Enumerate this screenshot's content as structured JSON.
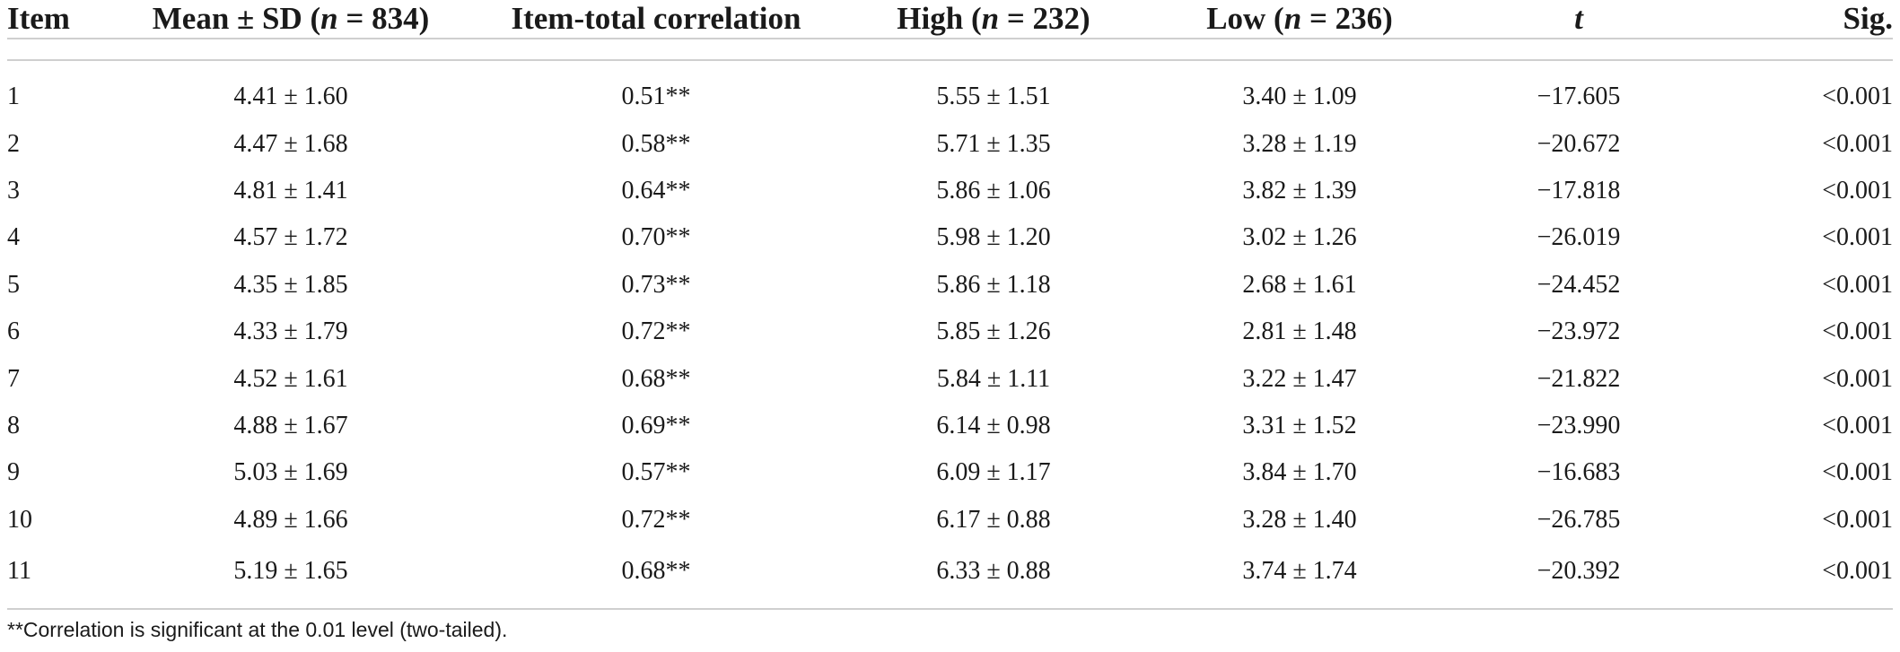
{
  "table": {
    "headers": {
      "item": "Item",
      "mean_prefix": "Mean ± SD (",
      "mean_n": "n",
      "mean_suffix": " = 834)",
      "corr": "Item-total correlation",
      "high_prefix": "High (",
      "high_n": "n",
      "high_suffix": " = 232)",
      "low_prefix": "Low (",
      "low_n": "n",
      "low_suffix": " = 236)",
      "t": "t",
      "sig": "Sig."
    },
    "rows": [
      {
        "item": "1",
        "mean": "4.41 ± 1.60",
        "corr": "0.51**",
        "high": "5.55 ± 1.51",
        "low": "3.40 ± 1.09",
        "t": "−17.605",
        "sig": "<0.001"
      },
      {
        "item": "2",
        "mean": "4.47 ± 1.68",
        "corr": "0.58**",
        "high": "5.71 ± 1.35",
        "low": "3.28 ± 1.19",
        "t": "−20.672",
        "sig": "<0.001"
      },
      {
        "item": "3",
        "mean": "4.81 ± 1.41",
        "corr": "0.64**",
        "high": "5.86 ± 1.06",
        "low": "3.82 ± 1.39",
        "t": "−17.818",
        "sig": "<0.001"
      },
      {
        "item": "4",
        "mean": "4.57 ± 1.72",
        "corr": "0.70**",
        "high": "5.98 ± 1.20",
        "low": "3.02 ± 1.26",
        "t": "−26.019",
        "sig": "<0.001"
      },
      {
        "item": "5",
        "mean": "4.35 ± 1.85",
        "corr": "0.73**",
        "high": "5.86 ± 1.18",
        "low": "2.68 ± 1.61",
        "t": "−24.452",
        "sig": "<0.001"
      },
      {
        "item": "6",
        "mean": "4.33 ± 1.79",
        "corr": "0.72**",
        "high": "5.85 ± 1.26",
        "low": "2.81 ± 1.48",
        "t": "−23.972",
        "sig": "<0.001"
      },
      {
        "item": "7",
        "mean": "4.52 ± 1.61",
        "corr": "0.68**",
        "high": "5.84 ± 1.11",
        "low": "3.22 ± 1.47",
        "t": "−21.822",
        "sig": "<0.001"
      },
      {
        "item": "8",
        "mean": "4.88 ± 1.67",
        "corr": "0.69**",
        "high": "6.14 ± 0.98",
        "low": "3.31 ± 1.52",
        "t": "−23.990",
        "sig": "<0.001"
      },
      {
        "item": "9",
        "mean": "5.03 ± 1.69",
        "corr": "0.57**",
        "high": "6.09 ± 1.17",
        "low": "3.84 ± 1.70",
        "t": "−16.683",
        "sig": "<0.001"
      },
      {
        "item": "10",
        "mean": "4.89 ± 1.66",
        "corr": "0.72**",
        "high": "6.17 ± 0.88",
        "low": "3.28 ± 1.40",
        "t": "−26.785",
        "sig": "<0.001"
      },
      {
        "item": "11",
        "mean": "5.19 ± 1.65",
        "corr": "0.68**",
        "high": "6.33 ± 0.88",
        "low": "3.74 ± 1.74",
        "t": "−20.392",
        "sig": "<0.001"
      }
    ]
  },
  "footnote": "**Correlation is significant at the 0.01 level (two-tailed)."
}
